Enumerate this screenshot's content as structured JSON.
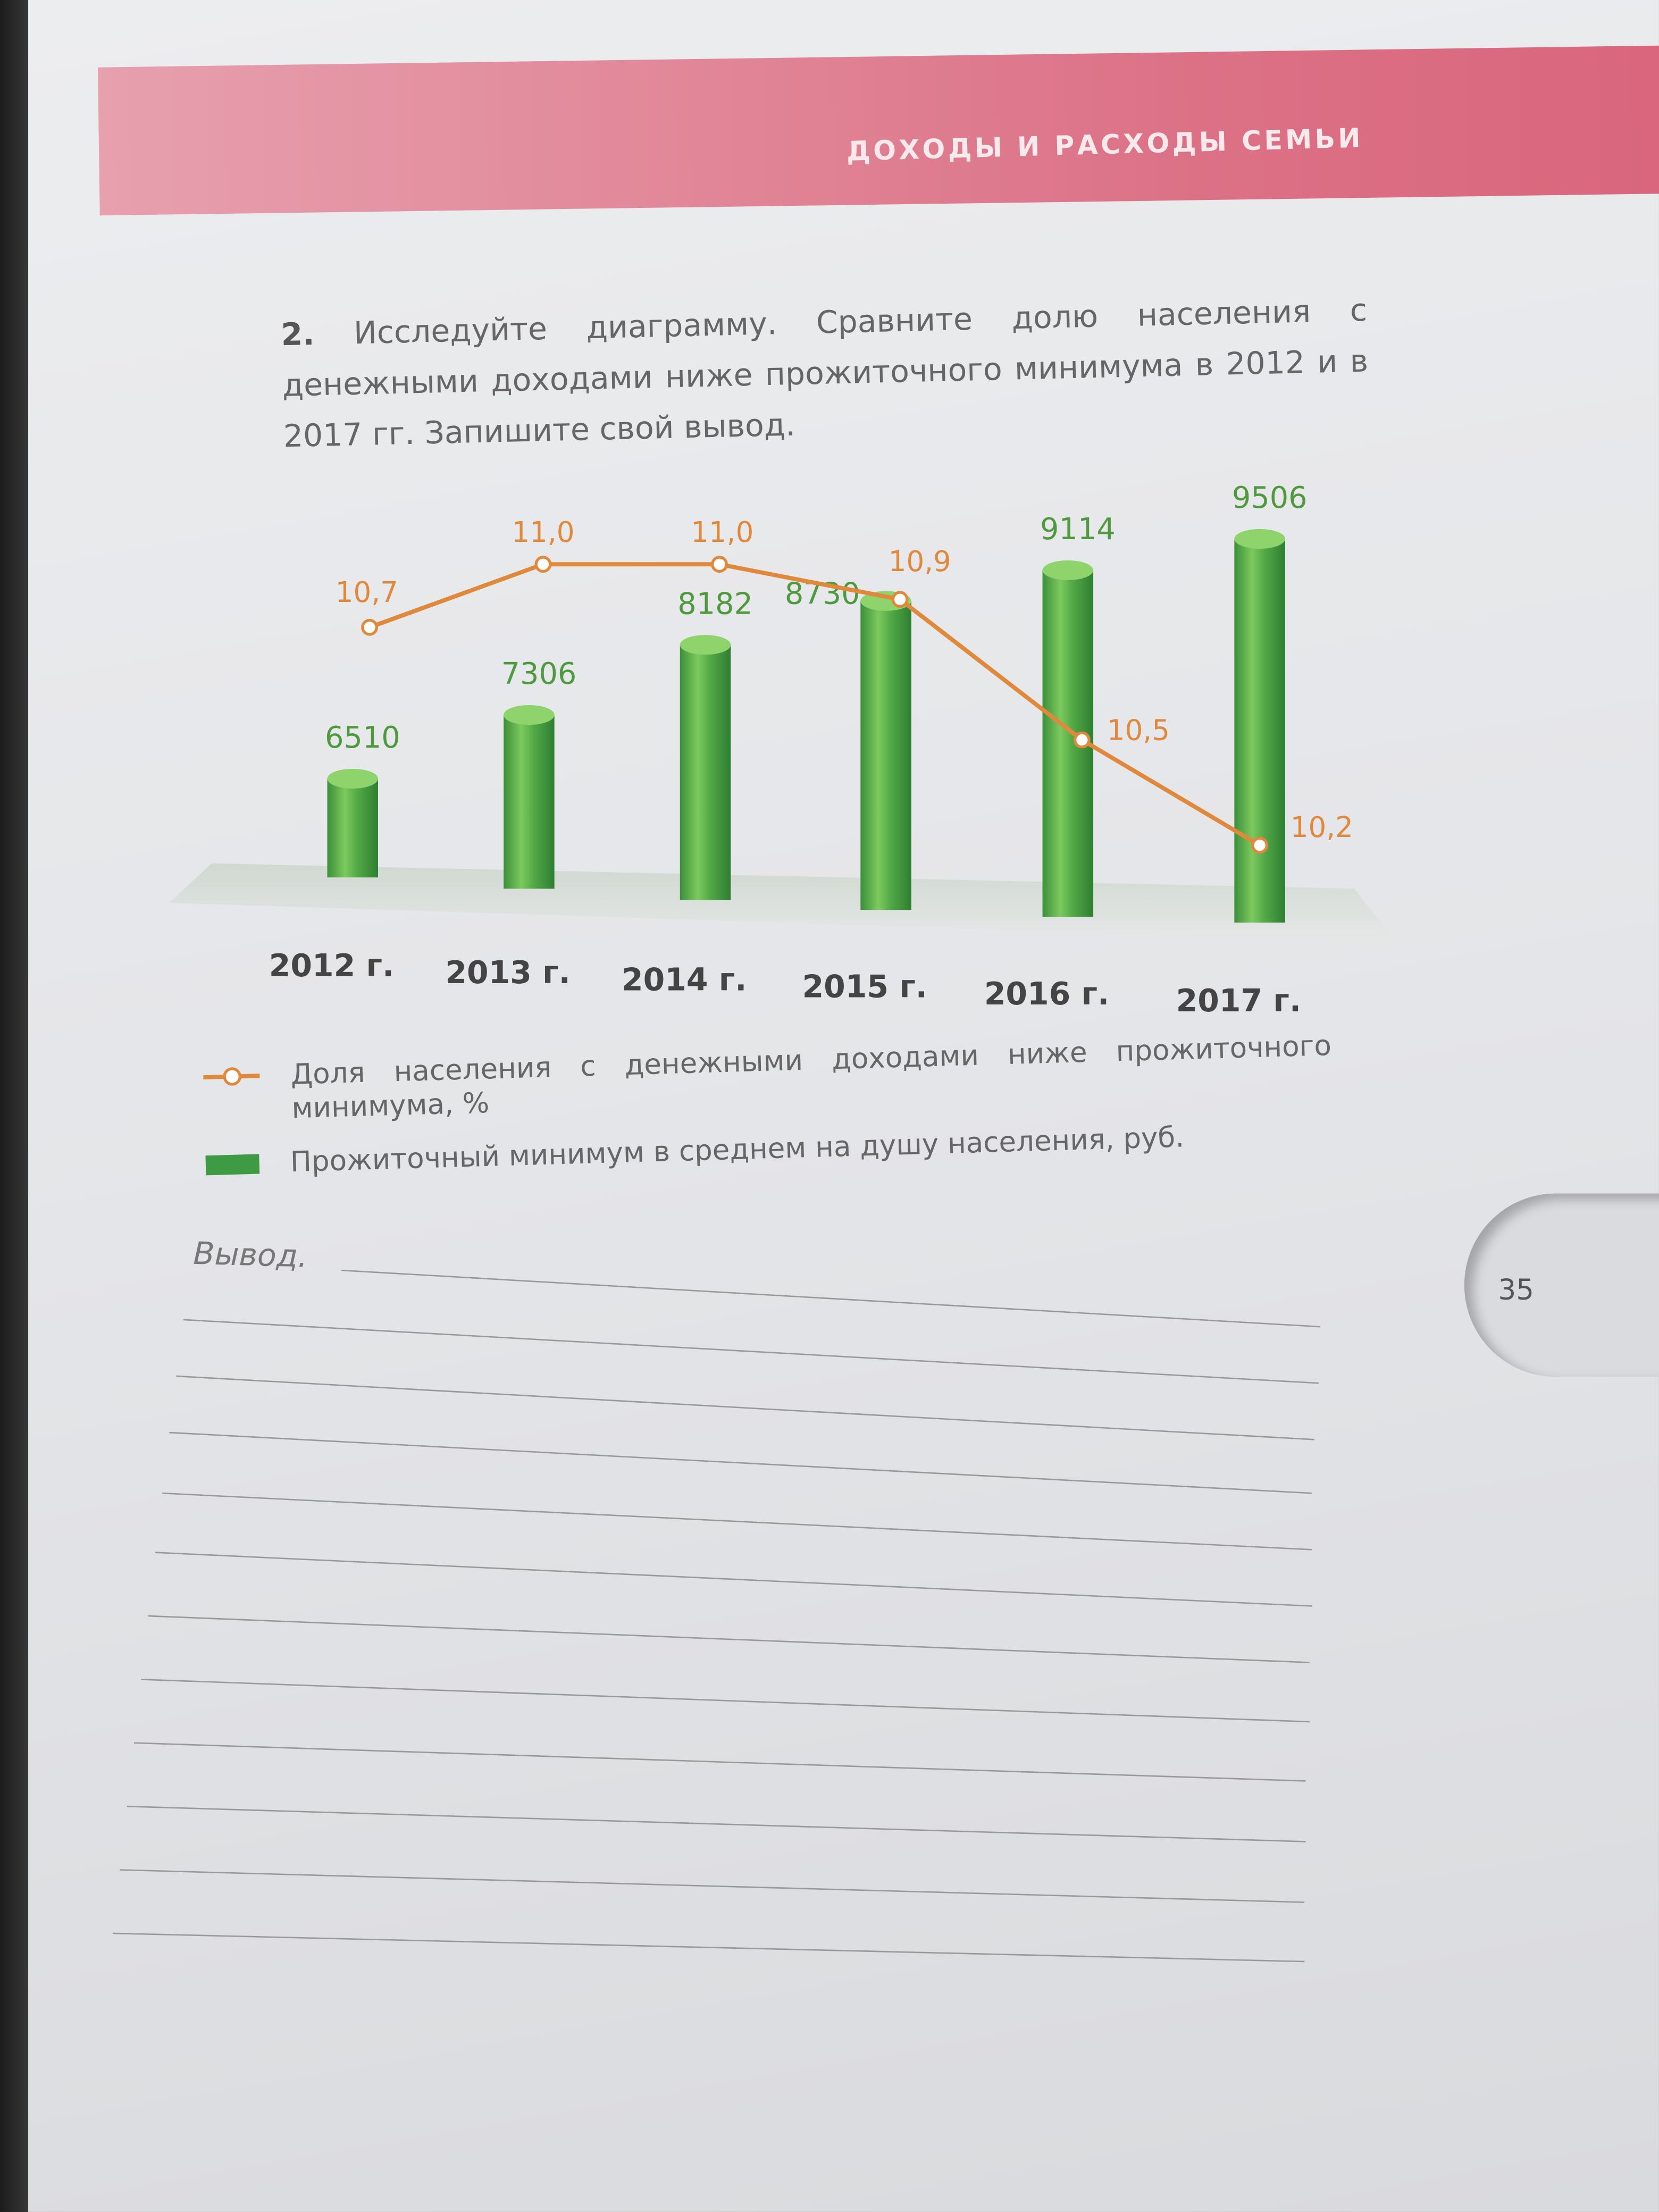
{
  "header": {
    "section_title": "ДОХОДЫ И РАСХОДЫ СЕМЬИ"
  },
  "task": {
    "number": "2.",
    "text": "Исследуйте диаграмму. Сравните долю населения с денежными доходами ниже прожиточного минимума в 2012 и в 2017 гг. Запишите свой вывод."
  },
  "chart_data": {
    "type": "bar+line",
    "categories": [
      "2012 г.",
      "2013 г.",
      "2014 г.",
      "2015 г.",
      "2016 г.",
      "2017 г."
    ],
    "series": [
      {
        "name": "Прожиточный минимум в среднем на душу населения, руб.",
        "type": "bar",
        "color": "#3f9a44",
        "values": [
          6510,
          7306,
          8182,
          8730,
          9114,
          9506
        ],
        "labels": [
          "6510",
          "7306",
          "8182",
          "8730",
          "9114",
          "9506"
        ]
      },
      {
        "name": "Доля населения с денежными доходами ниже прожиточного минимума, %",
        "type": "line",
        "color": "#e0893c",
        "values": [
          10.7,
          11.0,
          11.0,
          10.9,
          10.5,
          10.2
        ],
        "labels": [
          "10,7",
          "11,0",
          "11,0",
          "10,9",
          "10,5",
          "10,2"
        ]
      }
    ],
    "grid": false,
    "legend": "bottom"
  },
  "legend": {
    "line_label": "Доля населения с денежными доходами ниже прожиточного минимума, %",
    "bar_label": "Прожиточный минимум в среднем на душу населения, руб."
  },
  "conclusion": {
    "label": "Вывод."
  },
  "page_number": "35"
}
